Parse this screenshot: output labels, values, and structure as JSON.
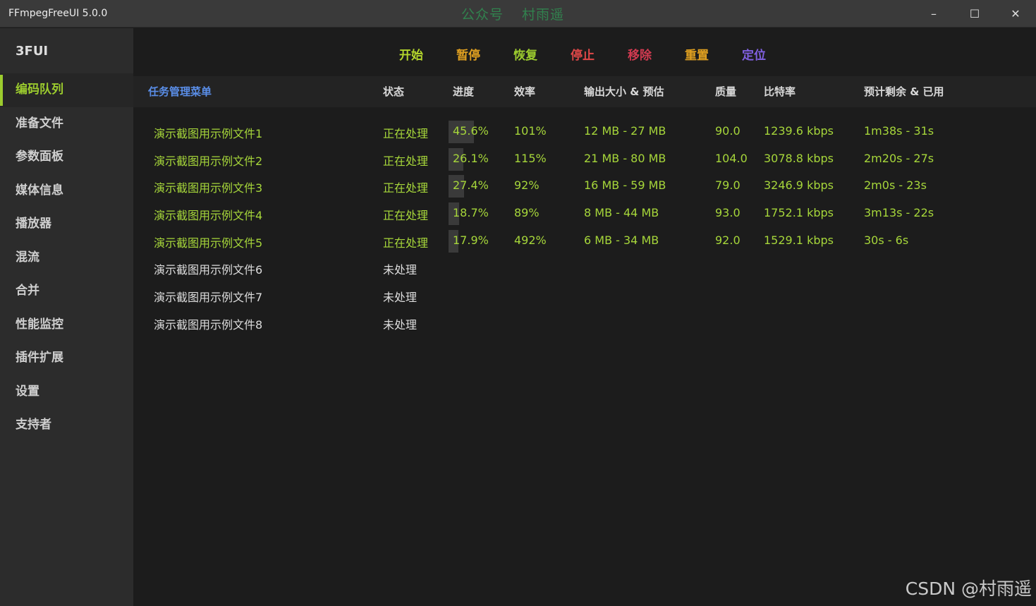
{
  "window": {
    "title": "FFmpegFreeUI 5.0.0",
    "watermark": [
      "公众号",
      "村雨遥"
    ],
    "controls": {
      "minimize": "–",
      "maximize": "☐",
      "close": "✕"
    }
  },
  "sidebar": {
    "brand": "3FUI",
    "items": [
      {
        "label": "编码队列",
        "active": true
      },
      {
        "label": "准备文件"
      },
      {
        "label": "参数面板"
      },
      {
        "label": "媒体信息"
      },
      {
        "label": "播放器"
      },
      {
        "label": "混流"
      },
      {
        "label": "合并"
      },
      {
        "label": "性能监控"
      },
      {
        "label": "插件扩展"
      },
      {
        "label": "设置"
      },
      {
        "label": "支持者"
      }
    ]
  },
  "toolbar": {
    "buttons": [
      {
        "label": "开始",
        "color": "#b4d62c"
      },
      {
        "label": "暂停",
        "color": "#e0a020"
      },
      {
        "label": "恢复",
        "color": "#9ccc2e"
      },
      {
        "label": "停止",
        "color": "#e04848"
      },
      {
        "label": "移除",
        "color": "#d03a50"
      },
      {
        "label": "重置",
        "color": "#e0a020"
      },
      {
        "label": "定位",
        "color": "#8060e0"
      }
    ]
  },
  "table": {
    "menu_label": "任务管理菜单",
    "menu_color": "#5a8ee8",
    "columns": [
      "状态",
      "进度",
      "效率",
      "输出大小 & 预估",
      "质量",
      "比特率",
      "预计剩余 & 已用"
    ],
    "rows": [
      {
        "name": "演示截图用示例文件1",
        "status": "正在处理",
        "progress": "45.6%",
        "progress_value": 45.6,
        "efficiency": "101%",
        "size": "12 MB - 27 MB",
        "quality": "90.0",
        "bitrate": "1239.6 kbps",
        "time": "1m38s - 31s"
      },
      {
        "name": "演示截图用示例文件2",
        "status": "正在处理",
        "progress": "26.1%",
        "progress_value": 26.1,
        "efficiency": "115%",
        "size": "21 MB - 80 MB",
        "quality": "104.0",
        "bitrate": "3078.8 kbps",
        "time": "2m20s - 27s"
      },
      {
        "name": "演示截图用示例文件3",
        "status": "正在处理",
        "progress": "27.4%",
        "progress_value": 27.4,
        "efficiency": "92%",
        "size": "16 MB - 59 MB",
        "quality": "79.0",
        "bitrate": "3246.9 kbps",
        "time": "2m0s - 23s"
      },
      {
        "name": "演示截图用示例文件4",
        "status": "正在处理",
        "progress": "18.7%",
        "progress_value": 18.7,
        "efficiency": "89%",
        "size": "8 MB - 44 MB",
        "quality": "93.0",
        "bitrate": "1752.1 kbps",
        "time": "3m13s - 22s"
      },
      {
        "name": "演示截图用示例文件5",
        "status": "正在处理",
        "progress": "17.9%",
        "progress_value": 17.9,
        "efficiency": "492%",
        "size": "6 MB - 34 MB",
        "quality": "92.0",
        "bitrate": "1529.1 kbps",
        "time": "30s - 6s"
      },
      {
        "name": "演示截图用示例文件6",
        "status": "未处理"
      },
      {
        "name": "演示截图用示例文件7",
        "status": "未处理"
      },
      {
        "name": "演示截图用示例文件8",
        "status": "未处理"
      }
    ]
  },
  "footer_watermark": "CSDN @村雨遥"
}
